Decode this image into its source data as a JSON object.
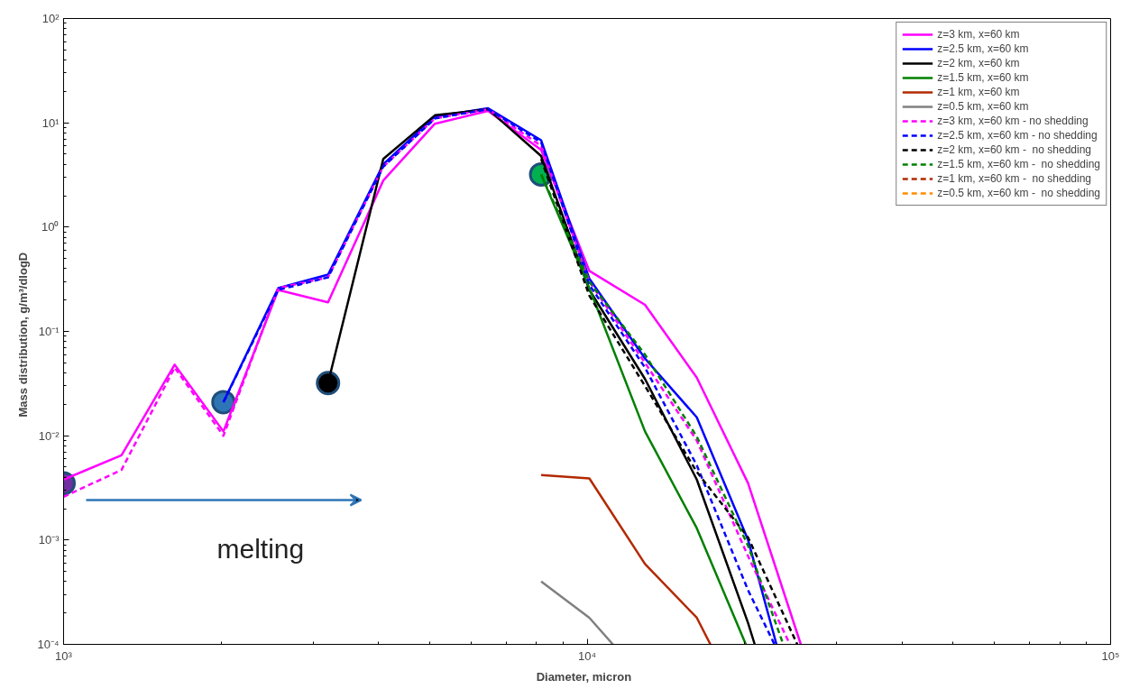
{
  "chart_data": {
    "type": "line",
    "xlabel": "Diameter,   micron",
    "ylabel": "Mass distribution,   g/m³/dlogD",
    "log": "xy",
    "grid": false,
    "legend": "top right",
    "marker": "none",
    "xlim": [
      1000,
      100000
    ],
    "ylim": [
      0.0001,
      100
    ],
    "xticks": [
      {
        "value": 1000,
        "label": "10³"
      },
      {
        "value": 10000,
        "label": "10⁴"
      },
      {
        "value": 100000,
        "label": "10⁵"
      }
    ],
    "yticks": [
      {
        "value": 0.0001,
        "label": "10⁻⁴"
      },
      {
        "value": 0.001,
        "label": "10⁻³"
      },
      {
        "value": 0.01,
        "label": "10⁻²"
      },
      {
        "value": 0.1,
        "label": "10⁻¹"
      },
      {
        "value": 1,
        "label": "10⁰"
      },
      {
        "value": 10,
        "label": "10¹"
      },
      {
        "value": 100,
        "label": "10²"
      }
    ],
    "annotations": [
      "melting"
    ],
    "series": [
      {
        "name": "z=3 km, x=60 km",
        "color": "#ff00ff",
        "line_style": "solid",
        "x": [
          1000,
          1290,
          1630,
          2020,
          2570,
          3200,
          4080,
          5120,
          6470,
          8170,
          10100,
          12900,
          16200,
          20300,
          25600
        ],
        "values": [
          0.0038,
          0.0065,
          0.048,
          0.011,
          0.25,
          0.19,
          2.8,
          9.8,
          13,
          5.5,
          0.38,
          0.18,
          0.036,
          0.0035,
          0.0001
        ]
      },
      {
        "name": "z=2.5 km, x=60 km",
        "color": "#0000ff",
        "line_style": "solid",
        "x": [
          2020,
          2570,
          3200,
          4080,
          5120,
          6470,
          8170,
          10100,
          12900,
          16200,
          20300,
          23000
        ],
        "values": [
          0.021,
          0.26,
          0.35,
          4.0,
          11.5,
          13.8,
          6.8,
          0.32,
          0.055,
          0.015,
          0.001,
          0.0001
        ]
      },
      {
        "name": "z=2 km, x=60 km",
        "color": "#000000",
        "line_style": "solid",
        "x": [
          3200,
          4080,
          5120,
          6470,
          8170,
          10100,
          12900,
          16200,
          20300,
          20900
        ],
        "values": [
          0.032,
          4.5,
          11.8,
          13.5,
          4.8,
          0.25,
          0.035,
          0.0038,
          0.00016,
          0.0001
        ]
      },
      {
        "name": "z=1.5 km, x=60 km",
        "color": "#008000",
        "line_style": "solid",
        "x": [
          8170,
          10100,
          12900,
          16200,
          20100
        ],
        "values": [
          3.2,
          0.26,
          0.011,
          0.0013,
          0.0001
        ]
      },
      {
        "name": "z=1 km, x=60 km",
        "color": "#b22a00",
        "line_style": "solid",
        "x": [
          8170,
          10100,
          12900,
          16200,
          17200
        ],
        "values": [
          0.0042,
          0.0039,
          0.00059,
          0.00018,
          0.0001
        ]
      },
      {
        "name": "z=0.5 km, x=60 km",
        "color": "#808080",
        "line_style": "solid",
        "x": [
          8170,
          10100,
          11200
        ],
        "values": [
          0.0004,
          0.00018,
          0.0001
        ]
      },
      {
        "name": "z=3 km, x=60 km - no shedding",
        "color": "#ff00ff",
        "line_style": "dashed",
        "x": [
          1000,
          1290,
          1630,
          2020,
          2570,
          3200,
          4080,
          5120,
          6470,
          8170,
          10100,
          12900,
          16200,
          20300,
          24400
        ],
        "values": [
          0.0026,
          0.0047,
          0.045,
          0.01,
          0.26,
          0.33,
          3.8,
          11,
          13.5,
          6.0,
          0.3,
          0.05,
          0.009,
          0.0007,
          0.0001
        ]
      },
      {
        "name": "z=2.5 km, x=60 km - no shedding",
        "color": "#0000ff",
        "line_style": "dashed",
        "x": [
          2020,
          2570,
          3200,
          4080,
          5120,
          6470,
          8170,
          10100,
          12900,
          16200,
          20300,
          22800
        ],
        "values": [
          0.021,
          0.25,
          0.33,
          3.8,
          11,
          13.5,
          6.5,
          0.28,
          0.045,
          0.0052,
          0.00033,
          0.0001
        ]
      },
      {
        "name": "z=2 km, x=60 km -  no shedding",
        "color": "#000000",
        "line_style": "dashed",
        "x": [
          8170,
          10100,
          12900,
          16200,
          20300,
          25200
        ],
        "values": [
          4.5,
          0.22,
          0.03,
          0.0045,
          0.00106,
          0.0001
        ]
      },
      {
        "name": "z=1.5 km, x=60 km -  no shedding",
        "color": "#008000",
        "line_style": "dashed",
        "x": [
          8170,
          10100,
          12900,
          16200,
          20300,
          23700
        ],
        "values": [
          3.2,
          0.3,
          0.06,
          0.0098,
          0.00088,
          0.0001
        ]
      },
      {
        "name": "z=1 km, x=60 km -  no shedding",
        "color": "#b22a00",
        "line_style": "dashed"
      },
      {
        "name": "z=0.5 km, x=60 km -  no shedding",
        "color": "#ff8c00",
        "line_style": "dashed"
      },
      {
        "type": "scatter",
        "marker": "circle",
        "x": [
          1000,
          2020,
          3200,
          8170
        ],
        "values": [
          0.0035,
          0.021,
          0.032,
          3.2
        ],
        "colors": [
          "#7030a0",
          "#2e75b6",
          "#000000",
          "#00b050"
        ]
      }
    ]
  }
}
